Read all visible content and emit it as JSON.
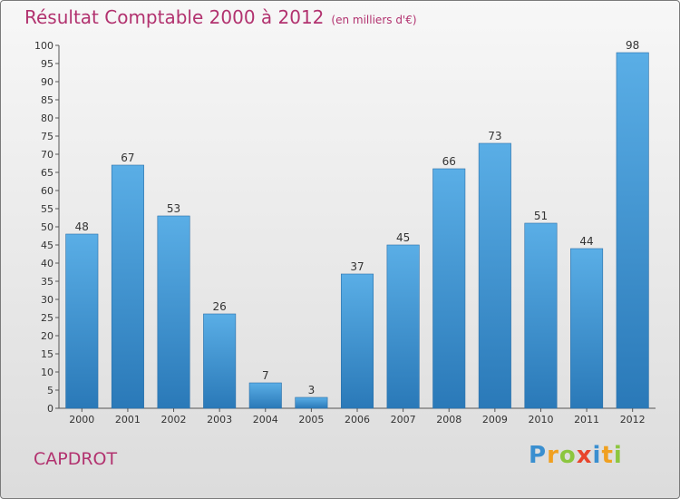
{
  "chart_data": {
    "type": "bar",
    "title": "Résultat Comptable 2000 à 2012",
    "subtitle": "(en milliers d'€)",
    "categories": [
      "2000",
      "2001",
      "2002",
      "2003",
      "2004",
      "2005",
      "2006",
      "2007",
      "2008",
      "2009",
      "2010",
      "2011",
      "2012"
    ],
    "values": [
      48,
      67,
      53,
      26,
      7,
      3,
      37,
      45,
      66,
      73,
      51,
      44,
      98
    ],
    "ylim": [
      0,
      100
    ],
    "ytick_step": 5,
    "grid": false,
    "bar_color": "#3a8fd0"
  },
  "footer": {
    "commune": "CAPDROT"
  },
  "logo": {
    "letters": [
      "P",
      "r",
      "o",
      "x",
      "i",
      "t",
      "i"
    ],
    "colors": [
      "#3a8fd0",
      "#f0a020",
      "#8cc63f",
      "#e8452c",
      "#3a8fd0",
      "#f0a020",
      "#8cc63f"
    ]
  },
  "colors": {
    "title": "#b2326f",
    "axis": "#333333"
  }
}
